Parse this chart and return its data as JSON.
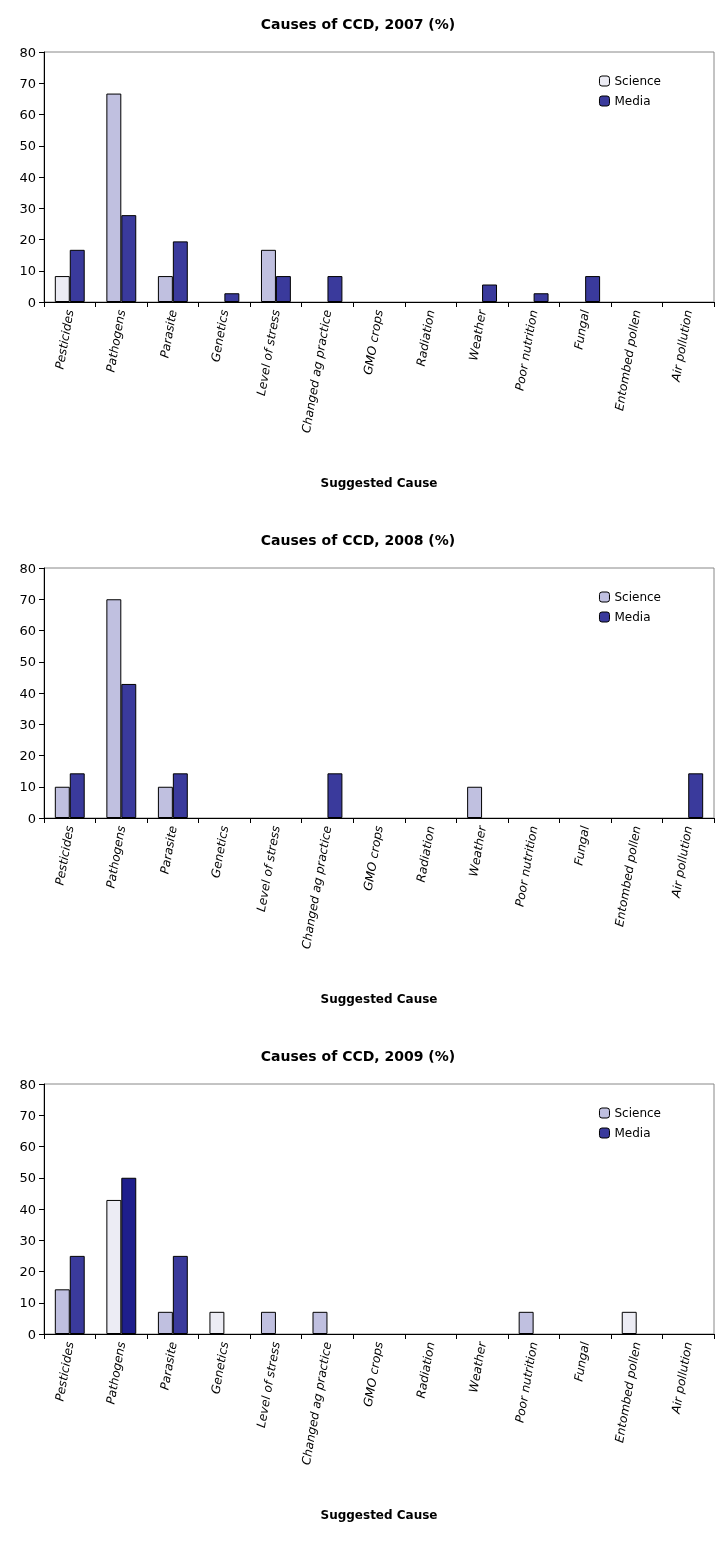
{
  "chart_data": [
    {
      "type": "bar",
      "title": "Causes of CCD, 2007 (%)",
      "xlabel": "Suggested Cause",
      "categories": [
        "Pesticides",
        "Pathogens",
        "Parasite",
        "Genetics",
        "Level of stress",
        "Changed ag practice",
        "GMO crops",
        "Radiation",
        "Weather",
        "Poor nutrition",
        "Fungal",
        "Entombed pollen",
        "Air pollution"
      ],
      "series": [
        {
          "name": "Science",
          "color": "#ececf4",
          "colors": [
            "#ececf4",
            "#c0c0e0",
            "#c0c0e0",
            "#c0c0e0",
            "#c0c0e0",
            "#c0c0e0",
            "#c0c0e0",
            "#c0c0e0",
            "#c0c0e0",
            "#c0c0e0",
            "#c0c0e0",
            "#c0c0e0",
            "#c0c0e0"
          ],
          "values": [
            8.3,
            66.7,
            8.3,
            0,
            16.7,
            0,
            0,
            0,
            0,
            0,
            0,
            0,
            0
          ]
        },
        {
          "name": "Media",
          "color": "#3a3a9c",
          "values": [
            16.7,
            27.8,
            19.4,
            2.8,
            8.3,
            8.3,
            0,
            0,
            5.6,
            2.8,
            8.3,
            0,
            0
          ]
        }
      ],
      "ylim": [
        0,
        80
      ],
      "yticks": [
        0,
        10,
        20,
        30,
        40,
        50,
        60,
        70,
        80
      ],
      "grid": false,
      "legend": "top right"
    },
    {
      "type": "bar",
      "title": "Causes of CCD, 2008 (%)",
      "xlabel": "Suggested Cause",
      "categories": [
        "Pesticides",
        "Pathogens",
        "Parasite",
        "Genetics",
        "Level of stress",
        "Changed ag practice",
        "GMO crops",
        "Radiation",
        "Weather",
        "Poor nutrition",
        "Fungal",
        "Entombed pollen",
        "Air pollution"
      ],
      "series": [
        {
          "name": "Science",
          "color": "#c0c0e0",
          "values": [
            10,
            70,
            10,
            0,
            0,
            0,
            0,
            0,
            10,
            0,
            0,
            0,
            0
          ]
        },
        {
          "name": "Media",
          "color": "#3a3a9c",
          "values": [
            14.3,
            42.9,
            14.3,
            0,
            0,
            14.3,
            0,
            0,
            0,
            0,
            0,
            0,
            14.3
          ]
        }
      ],
      "ylim": [
        0,
        80
      ],
      "yticks": [
        0,
        10,
        20,
        30,
        40,
        50,
        60,
        70,
        80
      ],
      "grid": false,
      "legend": "top right"
    },
    {
      "type": "bar",
      "title": "Causes of CCD, 2009 (%)",
      "xlabel": "Suggested Cause",
      "categories": [
        "Pesticides",
        "Pathogens",
        "Parasite",
        "Genetics",
        "Level of stress",
        "Changed ag practice",
        "GMO crops",
        "Radiation",
        "Weather",
        "Poor nutrition",
        "Fungal",
        "Entombed pollen",
        "Air pollution"
      ],
      "series": [
        {
          "name": "Science",
          "color": "#c0c0e0",
          "colors": [
            "#c0c0e0",
            "#ececf4",
            "#c0c0e0",
            "#ececf4",
            "#c0c0e0",
            "#c0c0e0",
            "#c0c0e0",
            "#c0c0e0",
            "#c0c0e0",
            "#c0c0e0",
            "#c0c0e0",
            "#ececf4",
            "#c0c0e0"
          ],
          "values": [
            14.3,
            42.9,
            7.1,
            7.1,
            7.1,
            7.1,
            0,
            0,
            0,
            7.1,
            0,
            7.1,
            0
          ]
        },
        {
          "name": "Media",
          "color": "#3a3a9c",
          "colors": [
            "#3a3a9c",
            "#1e1e8c",
            "#3a3a9c",
            "#3a3a9c",
            "#3a3a9c",
            "#3a3a9c",
            "#3a3a9c",
            "#3a3a9c",
            "#3a3a9c",
            "#3a3a9c",
            "#3a3a9c",
            "#3a3a9c",
            "#3a3a9c"
          ],
          "values": [
            25,
            50,
            25,
            0,
            0,
            0,
            0,
            0,
            0,
            0,
            0,
            0,
            0
          ]
        }
      ],
      "ylim": [
        0,
        80
      ],
      "yticks": [
        0,
        10,
        20,
        30,
        40,
        50,
        60,
        70,
        80
      ],
      "grid": false,
      "legend": "top right"
    }
  ]
}
